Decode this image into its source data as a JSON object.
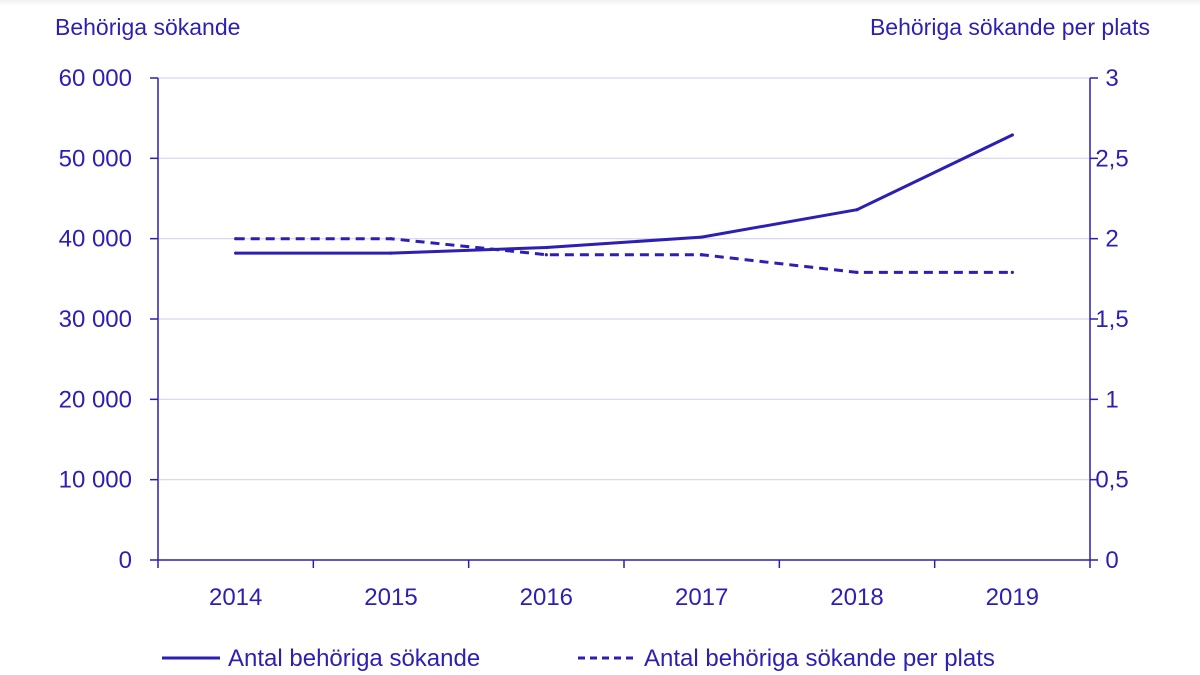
{
  "colors": {
    "primary": "#2b1fb4",
    "grid": "#d6d3f0",
    "background": "#ffffff"
  },
  "chart_data": {
    "type": "line",
    "title": "",
    "ylabel_left": "Behöriga sökande",
    "ylabel_right": "Behöriga sökande per plats",
    "xlabel": "",
    "categories": [
      "2014",
      "2015",
      "2016",
      "2017",
      "2018",
      "2019"
    ],
    "y_left": {
      "range": [
        0,
        60000
      ],
      "ticks": [
        0,
        10000,
        20000,
        30000,
        40000,
        50000,
        60000
      ],
      "tick_labels": [
        "0",
        "10 000",
        "20 000",
        "30 000",
        "40 000",
        "50 000",
        "60 000"
      ]
    },
    "y_right": {
      "range": [
        0,
        3
      ],
      "ticks": [
        0,
        0.5,
        1,
        1.5,
        2,
        2.5,
        3
      ],
      "tick_labels": [
        "0",
        "0,5",
        "1",
        "1,5",
        "2",
        "2,5",
        "3"
      ]
    },
    "grid": true,
    "legend_position": "bottom",
    "series": [
      {
        "name": "Antal behöriga sökande",
        "axis": "left",
        "style": "solid",
        "values": [
          38200,
          38200,
          38900,
          40200,
          43600,
          52900
        ]
      },
      {
        "name": "Antal behöriga sökande per plats",
        "axis": "right",
        "style": "dashed",
        "values": [
          2.0,
          2.0,
          1.9,
          1.9,
          1.79,
          1.79
        ]
      }
    ]
  }
}
